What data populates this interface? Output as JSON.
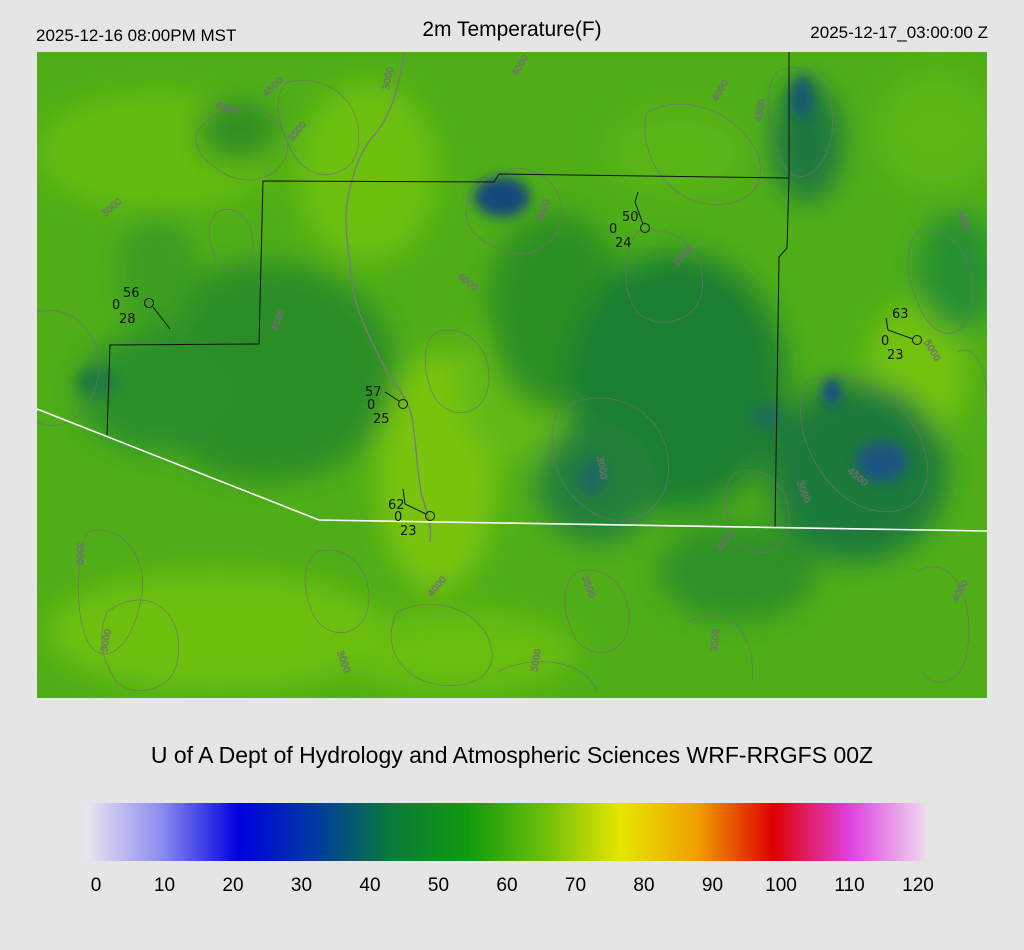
{
  "header": {
    "local_time": "2025-12-16 08:00PM MST",
    "title": "2m Temperature(F)",
    "utc_time": "2025-12-17_03:00:00 Z"
  },
  "credit": "U of A Dept of Hydrology and Atmospheric Sciences WRF-RRGFS 00Z",
  "colorbar": {
    "ticks": [
      "0",
      "10",
      "20",
      "30",
      "40",
      "50",
      "60",
      "70",
      "80",
      "90",
      "100",
      "110",
      "120"
    ],
    "colors": [
      "#e9e6ef",
      "#8a8af0",
      "#0000e0",
      "#003aa0",
      "#0b7a3a",
      "#119a0e",
      "#6cbf0a",
      "#e6e600",
      "#f0a000",
      "#e00000",
      "#e040e0",
      "#eedaee"
    ]
  },
  "stations": [
    {
      "id": "stn-west",
      "temp": "56",
      "wind": "0",
      "dewpoint": "28"
    },
    {
      "id": "stn-center",
      "temp": "57",
      "wind": "0",
      "dewpoint": "25"
    },
    {
      "id": "stn-south",
      "temp": "62",
      "wind": "0",
      "dewpoint": "23"
    },
    {
      "id": "stn-north",
      "temp": "50",
      "wind": "0",
      "dewpoint": "24"
    },
    {
      "id": "stn-east",
      "temp": "63",
      "wind": "0",
      "dewpoint": "23"
    }
  ],
  "contour_labels": [
    "3000",
    "4000",
    "4500",
    "4000",
    "3500",
    "3000",
    "4000",
    "4000",
    "3500",
    "4000",
    "4500",
    "4000",
    "5000",
    "4500",
    "3500",
    "3000",
    "3000",
    "4000",
    "3500",
    "5000",
    "3500",
    "4000",
    "3000",
    "4500",
    "4000",
    "3000"
  ]
}
